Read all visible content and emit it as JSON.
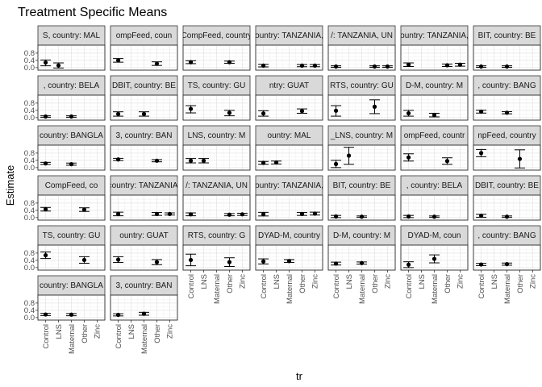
{
  "chart_data": {
    "type": "scatter",
    "title": "Treatment Specific Means",
    "xlabel": "tr",
    "ylabel": "Estimate",
    "categories": [
      "Control",
      "LNS",
      "Maternal",
      "Other",
      "Zinc"
    ],
    "yticks": [
      "0.0",
      "0.4",
      "0.8"
    ],
    "ylim": [
      -0.05,
      1.15
    ],
    "grid": true,
    "panels": [
      {
        "label": "S, country: MAL",
        "points": [
          {
            "x": "Control",
            "y": 0.28,
            "lo": 0.1,
            "hi": 0.42
          },
          {
            "x": "LNS",
            "y": 0.12,
            "lo": -0.02,
            "hi": 0.26
          }
        ]
      },
      {
        "label": "ompFeed, coun",
        "points": [
          {
            "x": "Control",
            "y": 0.4,
            "lo": 0.3,
            "hi": 0.5
          },
          {
            "x": "Other",
            "y": 0.22,
            "lo": 0.12,
            "hi": 0.32
          }
        ]
      },
      {
        "label": "CompFeed, country",
        "points": [
          {
            "x": "Control",
            "y": 0.3,
            "lo": 0.22,
            "hi": 0.38
          },
          {
            "x": "Other",
            "y": 0.3,
            "lo": 0.24,
            "hi": 0.36
          }
        ]
      },
      {
        "label": "ountry: TANZANIA,",
        "points": [
          {
            "x": "Control",
            "y": 0.11,
            "lo": 0.04,
            "hi": 0.18
          },
          {
            "x": "Other",
            "y": 0.11,
            "lo": 0.05,
            "hi": 0.17
          },
          {
            "x": "Zinc",
            "y": 0.11,
            "lo": 0.05,
            "hi": 0.17
          }
        ]
      },
      {
        "label": "/: TANZANIA, UN",
        "points": [
          {
            "x": "Control",
            "y": 0.06,
            "lo": 0.02,
            "hi": 0.1
          },
          {
            "x": "Other",
            "y": 0.06,
            "lo": 0.02,
            "hi": 0.1
          },
          {
            "x": "Zinc",
            "y": 0.06,
            "lo": 0.02,
            "hi": 0.1
          }
        ]
      },
      {
        "label": "ountry: TANZANIA,",
        "points": [
          {
            "x": "Control",
            "y": 0.16,
            "lo": 0.06,
            "hi": 0.26
          },
          {
            "x": "Other",
            "y": 0.13,
            "lo": 0.06,
            "hi": 0.2
          },
          {
            "x": "Zinc",
            "y": 0.16,
            "lo": 0.08,
            "hi": 0.24
          }
        ]
      },
      {
        "label": "BIT, country: BE",
        "points": [
          {
            "x": "Control",
            "y": 0.06,
            "lo": 0.02,
            "hi": 0.1
          },
          {
            "x": "Maternal",
            "y": 0.06,
            "lo": 0.02,
            "hi": 0.1
          }
        ]
      },
      {
        "label": ", country: BELA",
        "points": [
          {
            "x": "Control",
            "y": 0.06,
            "lo": 0.02,
            "hi": 0.1
          },
          {
            "x": "Maternal",
            "y": 0.06,
            "lo": 0.02,
            "hi": 0.1
          }
        ]
      },
      {
        "label": "DBIT, country: BE",
        "points": [
          {
            "x": "Control",
            "y": 0.2,
            "lo": 0.08,
            "hi": 0.32
          },
          {
            "x": "Maternal",
            "y": 0.2,
            "lo": 0.08,
            "hi": 0.32
          }
        ]
      },
      {
        "label": "TS, country: GU",
        "points": [
          {
            "x": "Control",
            "y": 0.48,
            "lo": 0.26,
            "hi": 0.66
          },
          {
            "x": "Other",
            "y": 0.26,
            "lo": 0.1,
            "hi": 0.4
          }
        ]
      },
      {
        "label": "ntry: GUAT",
        "points": [
          {
            "x": "Control",
            "y": 0.23,
            "lo": 0.08,
            "hi": 0.38
          },
          {
            "x": "Other",
            "y": 0.36,
            "lo": 0.24,
            "hi": 0.48
          }
        ]
      },
      {
        "label": "RTS, country: GU",
        "points": [
          {
            "x": "Control",
            "y": 0.38,
            "lo": 0.08,
            "hi": 0.66
          },
          {
            "x": "Other",
            "y": 0.6,
            "lo": 0.22,
            "hi": 0.98
          }
        ]
      },
      {
        "label": "D-M, country: M",
        "points": [
          {
            "x": "Control",
            "y": 0.24,
            "lo": 0.08,
            "hi": 0.4
          },
          {
            "x": "Maternal",
            "y": 0.14,
            "lo": 0.04,
            "hi": 0.24
          }
        ]
      },
      {
        "label": ", country: BANG",
        "points": [
          {
            "x": "Control",
            "y": 0.33,
            "lo": 0.25,
            "hi": 0.41
          },
          {
            "x": "Maternal",
            "y": 0.27,
            "lo": 0.21,
            "hi": 0.33
          }
        ]
      },
      {
        "label": "country: BANGLA",
        "points": [
          {
            "x": "Control",
            "y": 0.23,
            "lo": 0.17,
            "hi": 0.29
          },
          {
            "x": "Maternal",
            "y": 0.19,
            "lo": 0.13,
            "hi": 0.25
          }
        ]
      },
      {
        "label": "3, country: BAN",
        "points": [
          {
            "x": "Control",
            "y": 0.45,
            "lo": 0.39,
            "hi": 0.51
          },
          {
            "x": "Other",
            "y": 0.38,
            "lo": 0.32,
            "hi": 0.44
          }
        ]
      },
      {
        "label": "LNS, country: M",
        "points": [
          {
            "x": "Control",
            "y": 0.38,
            "lo": 0.26,
            "hi": 0.5
          },
          {
            "x": "LNS",
            "y": 0.38,
            "lo": 0.26,
            "hi": 0.5
          }
        ]
      },
      {
        "label": "ountry: MAL",
        "points": [
          {
            "x": "Control",
            "y": 0.26,
            "lo": 0.18,
            "hi": 0.34
          },
          {
            "x": "LNS",
            "y": 0.28,
            "lo": 0.2,
            "hi": 0.36
          }
        ]
      },
      {
        "label": "_LNS, country: M",
        "points": [
          {
            "x": "Control",
            "y": 0.2,
            "lo": 0.0,
            "hi": 0.4
          },
          {
            "x": "LNS",
            "y": 0.66,
            "lo": 0.18,
            "hi": 1.12
          }
        ]
      },
      {
        "label": "ompFeed, countr",
        "points": [
          {
            "x": "Control",
            "y": 0.56,
            "lo": 0.36,
            "hi": 0.76
          },
          {
            "x": "Other",
            "y": 0.36,
            "lo": 0.18,
            "hi": 0.54
          }
        ]
      },
      {
        "label": "npFeed, country",
        "points": [
          {
            "x": "Control",
            "y": 0.8,
            "lo": 0.6,
            "hi": 1.0
          },
          {
            "x": "Other",
            "y": 0.48,
            "lo": -0.02,
            "hi": 0.98
          }
        ]
      },
      {
        "label": "CompFeed, co",
        "points": [
          {
            "x": "Control",
            "y": 0.46,
            "lo": 0.36,
            "hi": 0.56
          },
          {
            "x": "Other",
            "y": 0.44,
            "lo": 0.34,
            "hi": 0.54
          }
        ]
      },
      {
        "label": "country: TANZANIA,",
        "points": [
          {
            "x": "Control",
            "y": 0.2,
            "lo": 0.1,
            "hi": 0.3
          },
          {
            "x": "Other",
            "y": 0.2,
            "lo": 0.12,
            "hi": 0.28
          },
          {
            "x": "Zinc",
            "y": 0.2,
            "lo": 0.14,
            "hi": 0.26
          }
        ]
      },
      {
        "label": "/: TANZANIA, UN",
        "points": [
          {
            "x": "Control",
            "y": 0.18,
            "lo": 0.1,
            "hi": 0.26
          },
          {
            "x": "Other",
            "y": 0.16,
            "lo": 0.1,
            "hi": 0.22
          },
          {
            "x": "Zinc",
            "y": 0.18,
            "lo": 0.12,
            "hi": 0.24
          }
        ]
      },
      {
        "label": "ountry: TANZANIA,",
        "points": [
          {
            "x": "Control",
            "y": 0.19,
            "lo": 0.09,
            "hi": 0.29
          },
          {
            "x": "Other",
            "y": 0.2,
            "lo": 0.12,
            "hi": 0.28
          },
          {
            "x": "Zinc",
            "y": 0.22,
            "lo": 0.14,
            "hi": 0.3
          }
        ]
      },
      {
        "label": "BIT, country: BE",
        "points": [
          {
            "x": "Control",
            "y": 0.06,
            "lo": 0.0,
            "hi": 0.12
          },
          {
            "x": "Maternal",
            "y": 0.05,
            "lo": 0.01,
            "hi": 0.09
          }
        ]
      },
      {
        "label": ", country: BELA",
        "points": [
          {
            "x": "Control",
            "y": 0.06,
            "lo": 0.0,
            "hi": 0.12
          },
          {
            "x": "Maternal",
            "y": 0.05,
            "lo": 0.01,
            "hi": 0.09
          }
        ]
      },
      {
        "label": "DBIT, country: BE",
        "points": [
          {
            "x": "Control",
            "y": 0.1,
            "lo": 0.02,
            "hi": 0.18
          },
          {
            "x": "Maternal",
            "y": 0.05,
            "lo": 0.01,
            "hi": 0.09
          }
        ]
      },
      {
        "label": "TS, country: GU",
        "points": [
          {
            "x": "Control",
            "y": 0.68,
            "lo": 0.5,
            "hi": 0.86
          },
          {
            "x": "Other",
            "y": 0.42,
            "lo": 0.24,
            "hi": 0.6
          }
        ]
      },
      {
        "label": "ountry: GUAT",
        "points": [
          {
            "x": "Control",
            "y": 0.44,
            "lo": 0.28,
            "hi": 0.6
          },
          {
            "x": "Other",
            "y": 0.3,
            "lo": 0.16,
            "hi": 0.44
          }
        ]
      },
      {
        "label": "RTS, country: G",
        "points": [
          {
            "x": "Control",
            "y": 0.42,
            "lo": 0.1,
            "hi": 0.74
          },
          {
            "x": "Other",
            "y": 0.3,
            "lo": 0.06,
            "hi": 0.54
          }
        ]
      },
      {
        "label": "DYAD-M, country",
        "points": [
          {
            "x": "Control",
            "y": 0.34,
            "lo": 0.2,
            "hi": 0.48
          },
          {
            "x": "Maternal",
            "y": 0.36,
            "lo": 0.28,
            "hi": 0.44
          }
        ]
      },
      {
        "label": "D-M, country: M",
        "points": [
          {
            "x": "Control",
            "y": 0.22,
            "lo": 0.14,
            "hi": 0.3
          },
          {
            "x": "Maternal",
            "y": 0.25,
            "lo": 0.19,
            "hi": 0.31
          }
        ]
      },
      {
        "label": "DYAD-M, coun",
        "points": [
          {
            "x": "Control",
            "y": 0.16,
            "lo": 0.0,
            "hi": 0.32
          },
          {
            "x": "Maternal",
            "y": 0.48,
            "lo": 0.26,
            "hi": 0.7
          }
        ]
      },
      {
        "label": ", country: BANG",
        "points": [
          {
            "x": "Control",
            "y": 0.17,
            "lo": 0.11,
            "hi": 0.23
          },
          {
            "x": "Maternal",
            "y": 0.19,
            "lo": 0.13,
            "hi": 0.25
          }
        ]
      },
      {
        "label": "country: BANGLA",
        "points": [
          {
            "x": "Control",
            "y": 0.17,
            "lo": 0.11,
            "hi": 0.23
          },
          {
            "x": "Maternal",
            "y": 0.16,
            "lo": 0.1,
            "hi": 0.22
          }
        ]
      },
      {
        "label": "3, country: BAN",
        "points": [
          {
            "x": "Control",
            "y": 0.15,
            "lo": 0.09,
            "hi": 0.21
          },
          {
            "x": "Maternal",
            "y": 0.21,
            "lo": 0.13,
            "hi": 0.29
          }
        ]
      }
    ]
  }
}
